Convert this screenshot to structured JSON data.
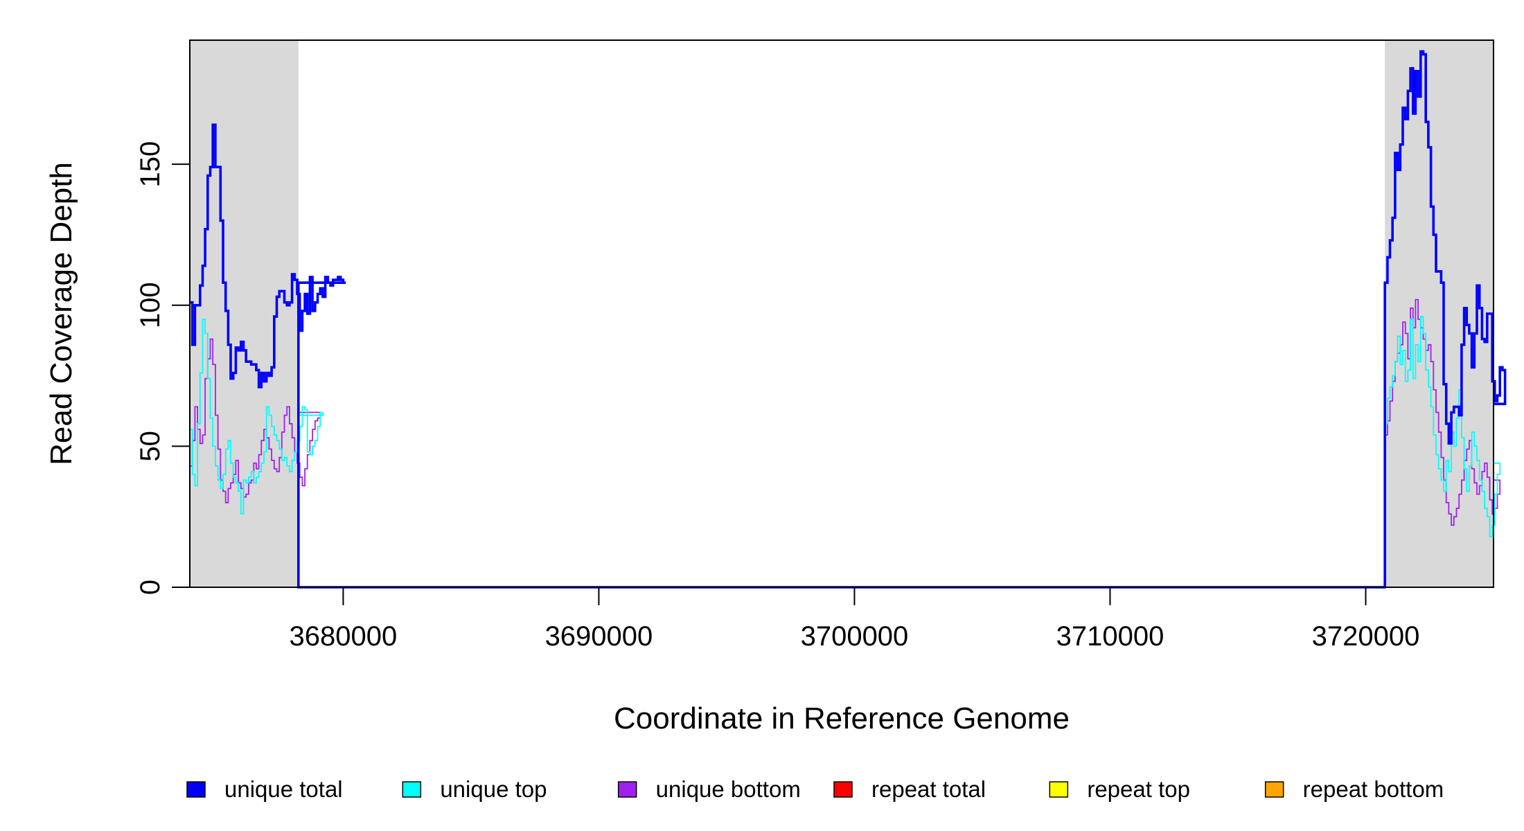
{
  "chart_data": {
    "type": "line",
    "title": "",
    "xlabel": "Coordinate in Reference Genome",
    "ylabel": "Read Coverage Depth",
    "xlim": [
      3674000,
      3725000
    ],
    "ylim": [
      0,
      194
    ],
    "x_ticks": [
      3680000,
      3690000,
      3700000,
      3710000,
      3720000
    ],
    "x_tick_labels": [
      "3680000",
      "3690000",
      "3700000",
      "3710000",
      "3720000"
    ],
    "y_ticks": [
      0,
      50,
      100,
      150
    ],
    "y_tick_labels": [
      "0",
      "50",
      "100",
      "150"
    ],
    "grid": false,
    "shaded_regions": [
      [
        3674000,
        3678250
      ],
      [
        3720750,
        3725000
      ]
    ],
    "shade_color": "#d9d9d9",
    "legend_position": "bottom",
    "series": [
      {
        "name": "unique total",
        "color": "#0000ff",
        "step": 100,
        "segments": [
          {
            "start": 3674000,
            "values": [
              101,
              86,
              100,
              100,
              107,
              114,
              127,
              146,
              149,
              164,
              149,
              149,
              130,
              108,
              98,
              86,
              74,
              76,
              85,
              84,
              87,
              84,
              80,
              80,
              79,
              79,
              77,
              71,
              76,
              73,
              76,
              75,
              78,
              96,
              103,
              105,
              105,
              101,
              100,
              101,
              111,
              109,
              104,
              91,
              98,
              104,
              97,
              110,
              98,
              101,
              104,
              106,
              103,
              110,
              108,
              107,
              109,
              109,
              110,
              109,
              108,
              108
            ]
          },
          {
            "start": 3678250,
            "values": [
              0
            ]
          },
          {
            "start": 3720750,
            "values": [
              108,
              117,
              123,
              131,
              154,
              148,
              157,
              170,
              166,
              176,
              184,
              168,
              183,
              174,
              190,
              189,
              165,
              156,
              135,
              125,
              112,
              112,
              108,
              72,
              58,
              51,
              62,
              64,
              64,
              61,
              86,
              99,
              93,
              90,
              78,
              90,
              107,
              99,
              88,
              87,
              97,
              97,
              73,
              66,
              68,
              78,
              77,
              65
            ]
          }
        ]
      },
      {
        "name": "unique top",
        "color": "#00ffff",
        "step": 100,
        "segments": [
          {
            "start": 3674000,
            "values": [
              56,
              40,
              36,
              58,
              76,
              95,
              90,
              74,
              60,
              50,
              43,
              38,
              35,
              40,
              49,
              52,
              44,
              39,
              37,
              34,
              26,
              38,
              37,
              39,
              41,
              37,
              39,
              41,
              44,
              48,
              64,
              61,
              57,
              54,
              52,
              49,
              45,
              46,
              43,
              41,
              45,
              48,
              52,
              57,
              64,
              63,
              48,
              47,
              50,
              52,
              57,
              62,
              61
            ]
          },
          {
            "start": 3678250,
            "values": [
              0
            ]
          },
          {
            "start": 3720750,
            "values": [
              58,
              67,
              71,
              75,
              80,
              89,
              79,
              84,
              73,
              77,
              95,
              74,
              86,
              80,
              96,
              90,
              77,
              71,
              64,
              54,
              47,
              42,
              38,
              34,
              45,
              41,
              55,
              50,
              60,
              70,
              53,
              42,
              34,
              43,
              55,
              50,
              45,
              38,
              34,
              28,
              25,
              18,
              22,
              33,
              40,
              44
            ]
          }
        ]
      },
      {
        "name": "unique bottom",
        "color": "#a020f0",
        "step": 100,
        "segments": [
          {
            "start": 3674000,
            "values": [
              43,
              52,
              64,
              56,
              51,
              54,
              74,
              81,
              88,
              79,
              61,
              49,
              38,
              34,
              30,
              35,
              37,
              40,
              45,
              37,
              35,
              32,
              33,
              37,
              38,
              44,
              42,
              47,
              52,
              56,
              53,
              49,
              45,
              42,
              41,
              46,
              55,
              61,
              64,
              58,
              53,
              48,
              44,
              39,
              36,
              42,
              47,
              52,
              56,
              59,
              60,
              62
            ]
          },
          {
            "start": 3678250,
            "values": [
              0
            ]
          },
          {
            "start": 3720750,
            "values": [
              54,
              59,
              66,
              73,
              80,
              83,
              86,
              94,
              90,
              81,
              99,
              92,
              102,
              95,
              92,
              88,
              84,
              86,
              80,
              70,
              62,
              55,
              46,
              38,
              30,
              26,
              22,
              25,
              28,
              33,
              38,
              45,
              49,
              52,
              42,
              37,
              33,
              36,
              41,
              44,
              39,
              31,
              26,
              28,
              33,
              38
            ]
          }
        ]
      },
      {
        "name": "repeat total",
        "color": "#ff0000",
        "step": 100,
        "segments": [
          {
            "start": 3674000,
            "values": [
              0
            ]
          }
        ]
      },
      {
        "name": "repeat top",
        "color": "#ffff00",
        "step": 100,
        "segments": [
          {
            "start": 3674000,
            "values": [
              0
            ]
          }
        ]
      },
      {
        "name": "repeat bottom",
        "color": "#ffa500",
        "step": 100,
        "segments": [
          {
            "start": 3674000,
            "values": [
              0
            ]
          }
        ]
      }
    ]
  }
}
